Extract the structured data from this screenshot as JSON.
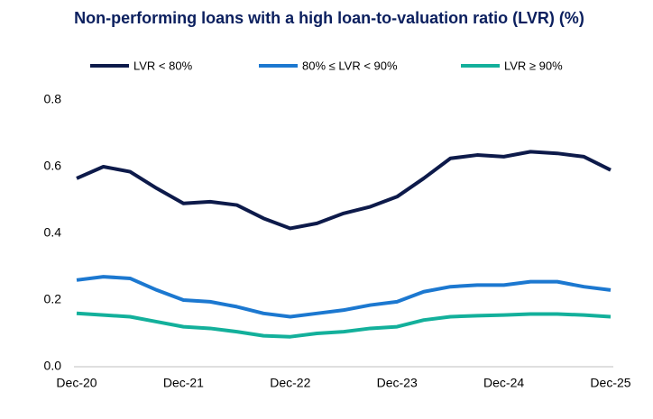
{
  "chart_data": {
    "type": "line",
    "title": "Non-performing loans with a high loan-to-valuation ratio (LVR) (%)",
    "categories": [
      "Dec-20",
      null,
      null,
      null,
      "Dec-21",
      null,
      null,
      null,
      "Dec-22",
      null,
      null,
      null,
      "Dec-23",
      null,
      null,
      null,
      "Dec-24",
      null,
      null,
      null,
      "Dec-25"
    ],
    "series": [
      {
        "name": "LVR < 80%",
        "color": "#0d1a4a",
        "values": [
          0.565,
          0.6,
          0.585,
          0.535,
          0.49,
          0.495,
          0.485,
          0.445,
          0.415,
          0.43,
          0.46,
          0.48,
          0.51,
          0.565,
          0.625,
          0.635,
          0.63,
          0.645,
          0.64,
          0.63,
          0.59
        ]
      },
      {
        "name": "80% ≤ LVR < 90%",
        "color": "#1c78d0",
        "values": [
          0.26,
          0.27,
          0.265,
          0.23,
          0.2,
          0.195,
          0.18,
          0.16,
          0.15,
          0.16,
          0.17,
          0.185,
          0.195,
          0.225,
          0.24,
          0.245,
          0.245,
          0.255,
          0.255,
          0.24,
          0.23
        ]
      },
      {
        "name": "LVR ≥ 90%",
        "color": "#13b09b",
        "values": [
          0.16,
          0.155,
          0.15,
          0.135,
          0.12,
          0.115,
          0.105,
          0.093,
          0.09,
          0.1,
          0.105,
          0.115,
          0.12,
          0.14,
          0.15,
          0.153,
          0.155,
          0.158,
          0.158,
          0.155,
          0.15
        ]
      }
    ],
    "ylim": [
      0,
      0.8
    ],
    "yticks": [
      {
        "value": 0,
        "label": "0.0"
      },
      0.2,
      0.4,
      0.6,
      0.8
    ],
    "grid": false,
    "legend": "top"
  }
}
